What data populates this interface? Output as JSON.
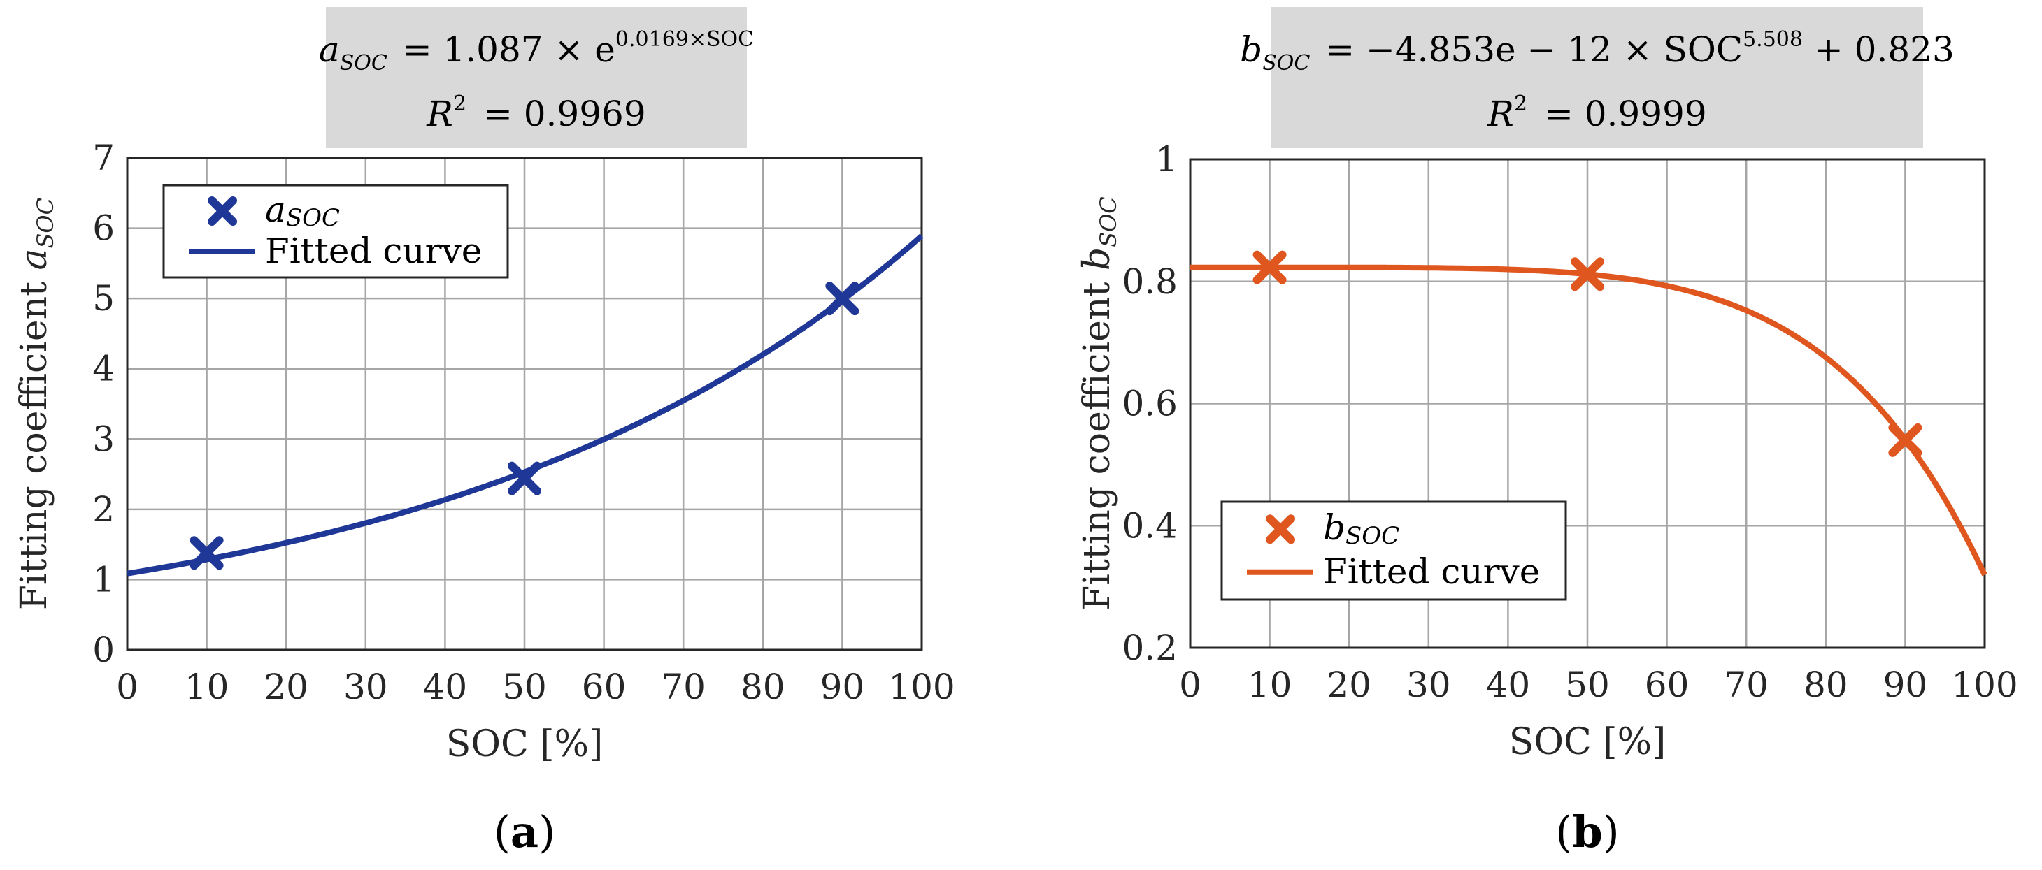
{
  "chart_data": [
    {
      "type": "scatter",
      "panel_label": "(a)",
      "equation": "a_SOC = 1.087 × e^(0.0169×SOC)",
      "equation_parts": {
        "lhs": "a",
        "lhs_sub": "SOC",
        "rhs": "=  1.087 × e",
        "exponent": "0.0169×SOC"
      },
      "r_squared": {
        "symbol": "R",
        "power": "2",
        "value": "= 0.9969"
      },
      "xlabel": "SOC [%]",
      "ylabel": "Fitting coefficient ",
      "ylabel_symbol": "a",
      "ylabel_sub": "SOC",
      "xlim": [
        0,
        100
      ],
      "ylim": [
        0,
        7
      ],
      "xticks": [
        0,
        10,
        20,
        30,
        40,
        50,
        60,
        70,
        80,
        90,
        100
      ],
      "yticks": [
        0,
        1,
        2,
        3,
        4,
        5,
        6,
        7
      ],
      "xtick_labels": [
        "0",
        "10",
        "20",
        "30",
        "40",
        "50",
        "60",
        "70",
        "80",
        "90",
        "100"
      ],
      "ytick_labels": [
        "0",
        "1",
        "2",
        "3",
        "4",
        "5",
        "6",
        "7"
      ],
      "grid": true,
      "legend_position": "top-left",
      "color": "#1f3796",
      "series": [
        {
          "name": "a_SOC",
          "legend_symbol": "a",
          "legend_sub": "SOC",
          "kind": "markers",
          "x": [
            10,
            50,
            90
          ],
          "y": [
            1.38,
            2.44,
            5.0
          ]
        },
        {
          "name": "Fitted curve",
          "kind": "line",
          "fit": {
            "form": "exp",
            "a": 1.087,
            "b": 0.0169
          }
        }
      ]
    },
    {
      "type": "scatter",
      "panel_label": "(b)",
      "equation": "b_SOC = −4.853e − 12 × SOC^5.508 + 0.823",
      "equation_parts": {
        "lhs": "b",
        "lhs_sub": "SOC",
        "rhs": "= −4.853e − 12 × SOC",
        "exponent": "5.508",
        "tail": " + 0.823"
      },
      "r_squared": {
        "symbol": "R",
        "power": "2",
        "value": "= 0.9999"
      },
      "xlabel": "SOC [%]",
      "ylabel": "Fitting coefficient ",
      "ylabel_symbol": "b",
      "ylabel_sub": "SOC",
      "xlim": [
        0,
        100
      ],
      "ylim": [
        0.2,
        1.0
      ],
      "xticks": [
        0,
        10,
        20,
        30,
        40,
        50,
        60,
        70,
        80,
        90,
        100
      ],
      "yticks": [
        0.2,
        0.4,
        0.6,
        0.8,
        1.0
      ],
      "xtick_labels": [
        "0",
        "10",
        "20",
        "30",
        "40",
        "50",
        "60",
        "70",
        "80",
        "90",
        "100"
      ],
      "ytick_labels": [
        "0.2",
        "0.4",
        "0.6",
        "0.8",
        "1"
      ],
      "grid": true,
      "legend_position": "bottom-left",
      "color": "#e0561f",
      "series": [
        {
          "name": "b_SOC",
          "legend_symbol": "b",
          "legend_sub": "SOC",
          "kind": "markers",
          "x": [
            10,
            50,
            90
          ],
          "y": [
            0.823,
            0.812,
            0.54
          ]
        },
        {
          "name": "Fitted curve",
          "kind": "line",
          "fit": {
            "form": "power",
            "a": -4.853e-12,
            "p": 5.508,
            "c": 0.823
          }
        }
      ]
    }
  ]
}
